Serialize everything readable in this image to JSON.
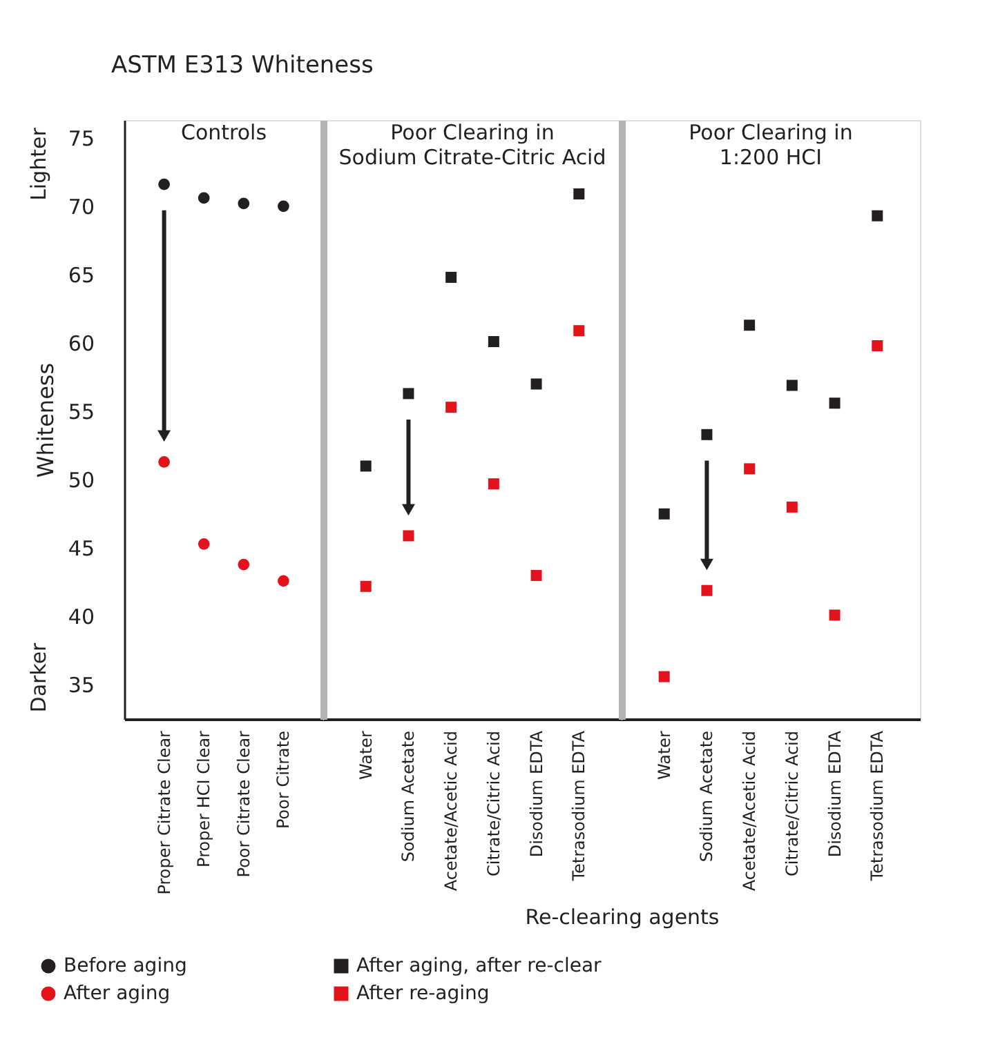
{
  "chart_data": [
    {
      "type": "scatter",
      "title": "ASTM E313 Whiteness",
      "subtitle": "Controls",
      "ylabel": "Whiteness",
      "annotations": [
        "Lighter",
        "Darker"
      ],
      "legend": "bottom left",
      "categories": [
        "Proper Citrate Clear",
        "Proper HCI Clear",
        "Poor Citrate Clear",
        "Poor Citrate"
      ],
      "series": [
        {
          "name": "Before aging",
          "color": "#231f20",
          "marker": "circle",
          "values": [
            71.6,
            70.6,
            70.2,
            70.0
          ]
        },
        {
          "name": "After aging",
          "color": "#e3131b",
          "marker": "circle",
          "values": [
            51.3,
            45.3,
            43.8,
            42.6
          ]
        }
      ],
      "ylim": [
        32.5,
        76.3
      ],
      "yticks": [
        35,
        40,
        45,
        50,
        55,
        60,
        65,
        70,
        75
      ],
      "grid": false
    },
    {
      "type": "scatter",
      "subtitle": "Poor Clearing in\nSodium Citrate-Citric Acid",
      "xlabel": "Re-clearing agents",
      "tick_labels": "x",
      "legend": "bottom left",
      "categories": [
        "Water",
        "Sodium Acetate",
        "Acetate/Acetic Acid",
        "Citrate/Citric Acid",
        "Disodium EDTA",
        "Tetrasodium EDTA"
      ],
      "series": [
        {
          "name": "After aging, after re-clear",
          "color": "#231f20",
          "marker": "square",
          "values": [
            51.0,
            56.3,
            64.8,
            60.1,
            57.0,
            70.9
          ]
        },
        {
          "name": "After re-aging",
          "color": "#e3131b",
          "marker": "square",
          "values": [
            42.2,
            45.9,
            55.3,
            49.7,
            43.0,
            60.9
          ]
        }
      ],
      "ylim": [
        32.5,
        76.3
      ],
      "yticks": [
        35,
        40,
        45,
        50,
        55,
        60,
        65,
        70,
        75
      ],
      "grid": false
    },
    {
      "type": "scatter",
      "subtitle": "Poor Clearing in\n1:200 HCI",
      "tick_labels": "x",
      "categories": [
        "Water",
        "Sodium Acetate",
        "Acetate/Acetic Acid",
        "Citrate/Citric Acid",
        "Disodium EDTA",
        "Tetrasodium EDTA"
      ],
      "series": [
        {
          "color": "#231f20",
          "marker": "square",
          "values": [
            47.5,
            53.3,
            61.3,
            56.9,
            55.6,
            69.3
          ]
        },
        {
          "color": "#e3131b",
          "marker": "square",
          "values": [
            35.6,
            41.9,
            50.8,
            48.0,
            40.1,
            59.8
          ]
        }
      ],
      "ylim": [
        32.5,
        76.3
      ],
      "yticks": [
        35,
        40,
        45,
        50,
        55,
        60,
        65,
        70,
        75
      ],
      "grid": false
    }
  ]
}
